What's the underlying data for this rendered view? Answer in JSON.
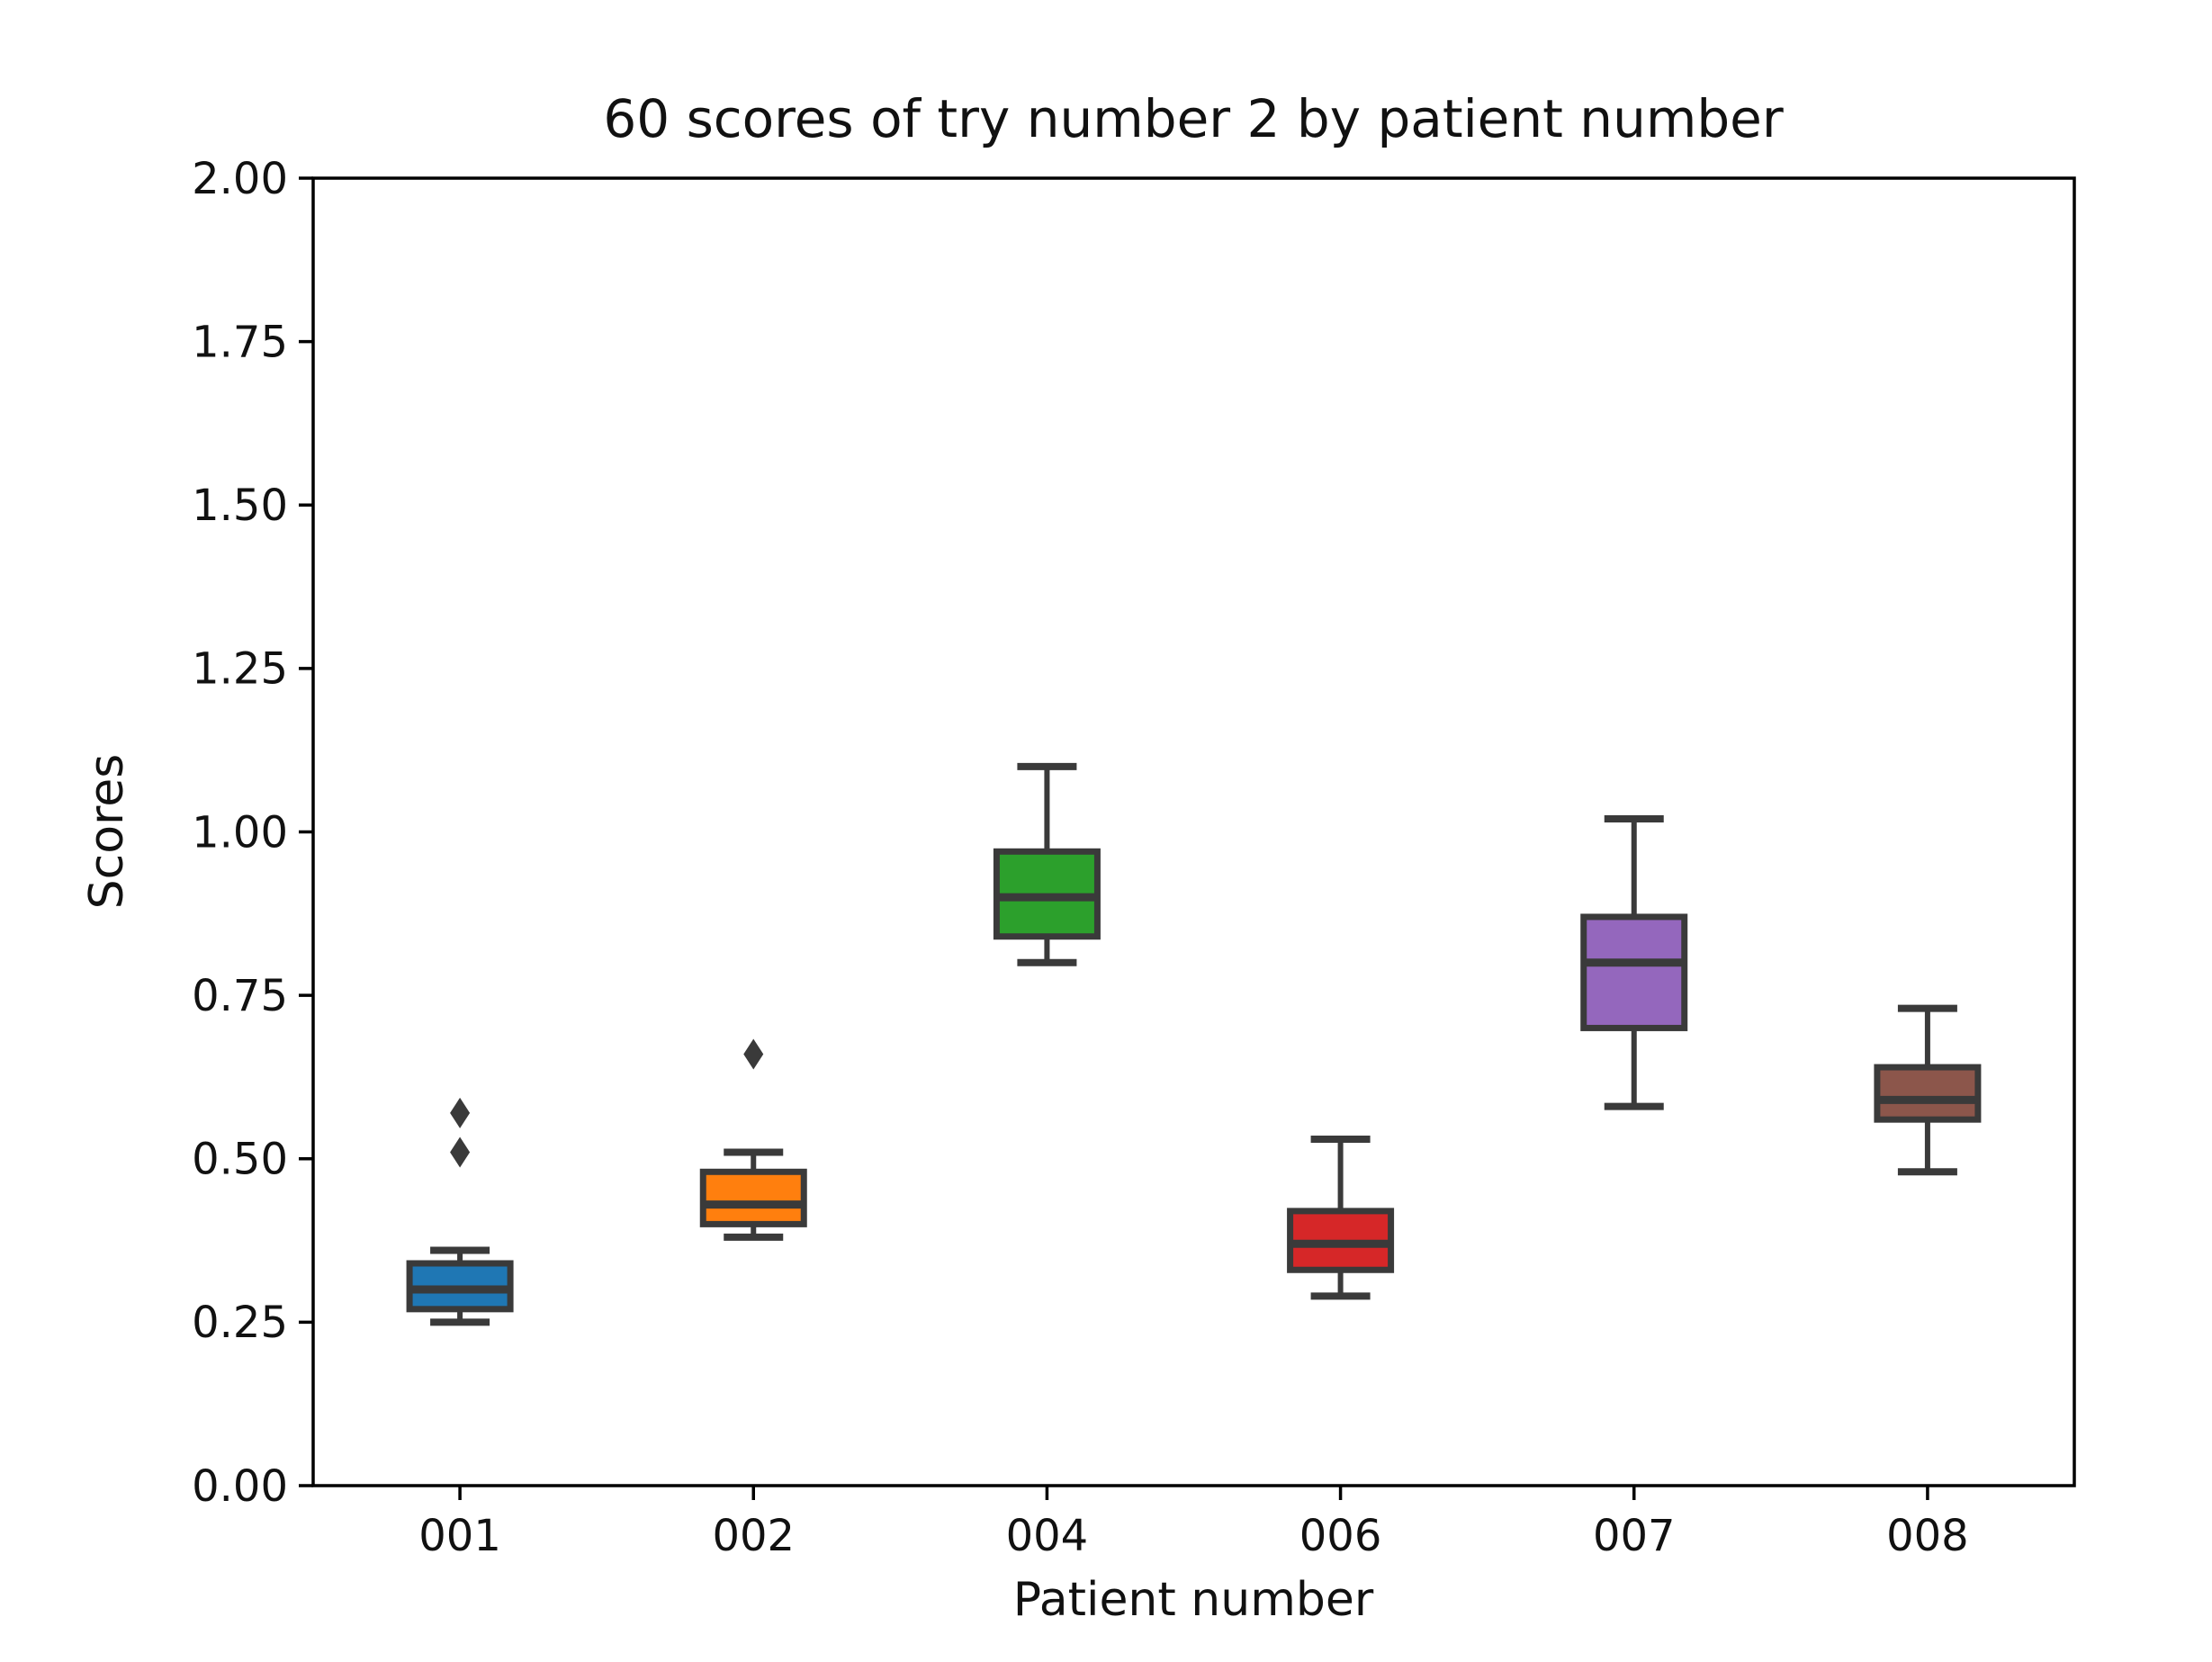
{
  "chart_data": {
    "type": "boxplot",
    "title": "60 scores of try number 2 by patient number",
    "xlabel": "Patient number",
    "ylabel": "Scores",
    "ylim": [
      0.0,
      2.0
    ],
    "y_tick_step": 0.25,
    "y_tick_labels": [
      "0.00",
      "0.25",
      "0.50",
      "0.75",
      "1.00",
      "1.25",
      "1.50",
      "1.75",
      "2.00"
    ],
    "categories": [
      "001",
      "002",
      "004",
      "006",
      "007",
      "008"
    ],
    "grid": false,
    "legend": "none",
    "series": [
      {
        "category": "001",
        "color": "#1f77b4",
        "whisker_low": 0.25,
        "q1": 0.27,
        "median": 0.3,
        "q3": 0.34,
        "whisker_high": 0.36,
        "outliers": [
          0.51,
          0.57
        ]
      },
      {
        "category": "002",
        "color": "#ff7f0e",
        "whisker_low": 0.38,
        "q1": 0.4,
        "median": 0.43,
        "q3": 0.48,
        "whisker_high": 0.51,
        "outliers": [
          0.66
        ]
      },
      {
        "category": "004",
        "color": "#2ca02c",
        "whisker_low": 0.8,
        "q1": 0.84,
        "median": 0.9,
        "q3": 0.97,
        "whisker_high": 1.1,
        "outliers": []
      },
      {
        "category": "006",
        "color": "#d62728",
        "whisker_low": 0.29,
        "q1": 0.33,
        "median": 0.37,
        "q3": 0.42,
        "whisker_high": 0.53,
        "outliers": []
      },
      {
        "category": "007",
        "color": "#9467bd",
        "whisker_low": 0.58,
        "q1": 0.7,
        "median": 0.8,
        "q3": 0.87,
        "whisker_high": 1.02,
        "outliers": []
      },
      {
        "category": "008",
        "color": "#8c564b",
        "whisker_low": 0.48,
        "q1": 0.56,
        "median": 0.59,
        "q3": 0.64,
        "whisker_high": 0.73,
        "outliers": []
      }
    ],
    "styles": {
      "edge_color": "#3a3a3a",
      "spine_color": "#000000",
      "text_color": "#111111",
      "background": "#ffffff"
    }
  }
}
